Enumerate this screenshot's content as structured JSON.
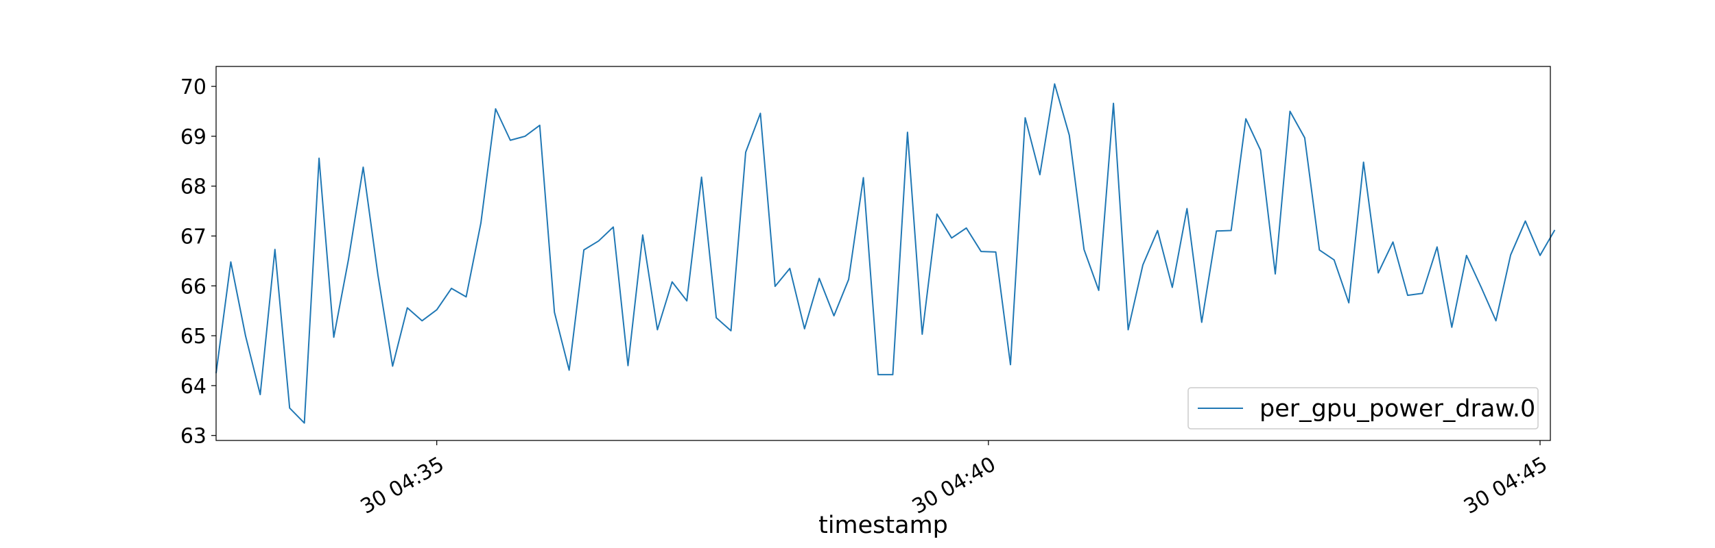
{
  "chart_data": {
    "type": "line",
    "title": "",
    "xlabel": "timestamp",
    "ylabel": "",
    "x_tick_labels": [
      "30 04:35",
      "30 04:40",
      "30 04:45"
    ],
    "y_ticks": [
      63,
      64,
      65,
      66,
      67,
      68,
      69,
      70
    ],
    "ylim": [
      62.9,
      70.4
    ],
    "xlim": [
      0,
      90.7
    ],
    "x_unit": "seconds after 04:33",
    "legend": "lower-right",
    "grid": false,
    "series": [
      {
        "name": "per_gpu_power_draw.0",
        "color": "#1f77b4",
        "x": [
          0,
          1,
          2,
          3,
          4,
          5,
          6,
          7,
          8,
          9,
          10,
          11,
          12,
          13,
          14,
          15,
          16,
          17,
          18,
          19,
          20,
          21,
          22,
          23,
          24,
          25,
          26,
          27,
          28,
          29,
          30,
          31,
          32,
          33,
          34,
          35,
          36,
          37,
          38,
          39,
          40,
          41,
          42,
          43,
          44,
          45,
          46,
          47,
          48,
          49,
          50,
          51,
          52,
          53,
          54,
          55,
          56,
          57,
          58,
          59,
          60,
          61,
          62,
          63,
          64,
          65,
          66,
          67,
          68,
          69,
          70,
          71,
          72,
          73,
          74,
          75,
          76,
          77,
          78,
          79,
          80,
          81,
          82,
          83,
          84,
          85,
          86,
          87,
          88,
          89,
          90,
          91
        ],
        "values": [
          64.25,
          66.48,
          65.0,
          63.82,
          66.73,
          63.55,
          63.25,
          68.56,
          64.97,
          66.53,
          68.38,
          66.22,
          64.39,
          65.56,
          65.3,
          65.52,
          65.95,
          65.78,
          67.26,
          69.55,
          68.92,
          69.0,
          69.22,
          65.47,
          64.31,
          66.72,
          66.9,
          67.18,
          64.4,
          67.02,
          65.12,
          66.08,
          65.7,
          68.18,
          65.36,
          65.1,
          68.68,
          69.46,
          65.99,
          66.35,
          65.14,
          66.15,
          65.4,
          66.13,
          68.17,
          64.22,
          64.22,
          69.08,
          65.03,
          67.44,
          66.96,
          67.16,
          66.69,
          66.68,
          64.42,
          69.37,
          68.23,
          70.05,
          69.02,
          66.73,
          65.91,
          69.66,
          65.12,
          66.42,
          67.11,
          65.97,
          67.55,
          65.27,
          67.1,
          67.11,
          69.35,
          68.72,
          66.24,
          69.5,
          68.97,
          66.72,
          66.52,
          65.66,
          68.48,
          66.26,
          66.88,
          65.81,
          65.85,
          66.78,
          65.17,
          66.61,
          65.97,
          65.3,
          66.62,
          67.3,
          66.61,
          67.12
        ]
      }
    ]
  }
}
